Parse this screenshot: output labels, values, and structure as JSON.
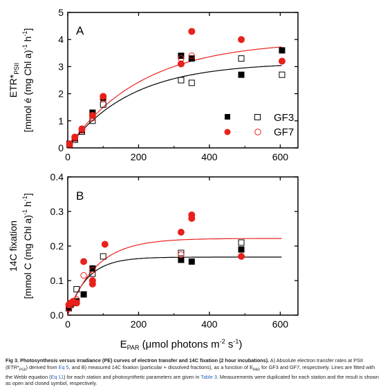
{
  "figure": {
    "caption_bold": "Fig 3. Photosynthesis versus irradiance (PE) curves of electron transfer and 14C fixation (2 hour incubations).",
    "caption_p1": " A) Absolute electron transfer rates at PSII (ETR*",
    "caption_p1_sub": "PSII",
    "caption_p2": ") derived from ",
    "caption_link1": "Eq 5",
    "caption_p3": ", and B) measured 14C fixation (particular + dissolved fractions), as a function of E",
    "caption_p3_sub": "PAR",
    "caption_p4": " for GF3 and GF7, respectively. Lines are fitted with the Webb equation (",
    "caption_link2": "Eq 11",
    "caption_p5": ") for each station and photosynthetic parameters are given in ",
    "caption_link3": "Table 3",
    "caption_p6": ". Measurements were duplicated for each station and the result is shown as open and closed symbol, respectively."
  },
  "colors": {
    "gf3": "#000000",
    "gf7": "#e8211c"
  },
  "chart_data": [
    {
      "type": "scatter",
      "panel_label": "A",
      "ylabel_line1": "ETR*",
      "ylabel_line1_sub": "PSII",
      "ylabel_line2": "[mmol é (mg Chl a)",
      "ylabel_line2_sup": "-1",
      "ylabel_line2_end": " h",
      "ylabel_line2_sup2": "-1",
      "ylabel_line2_close": "]",
      "xlim": [
        0,
        650
      ],
      "ylim": [
        0,
        5
      ],
      "xticks": [
        0,
        200,
        400,
        600
      ],
      "yticks": [
        0,
        1,
        2,
        3,
        4,
        5
      ],
      "legend": [
        "GF3",
        "GF7"
      ],
      "legend_position": "bottom-right",
      "series": [
        {
          "name": "GF3",
          "marker": "square",
          "filled": true,
          "color": "#000000",
          "x": [
            5,
            20,
            40,
            70,
            100,
            320,
            350,
            490,
            605
          ],
          "y": [
            0.15,
            0.35,
            0.65,
            1.3,
            1.85,
            3.4,
            3.3,
            2.7,
            3.6
          ]
        },
        {
          "name": "GF3",
          "marker": "square",
          "filled": false,
          "color": "#000000",
          "x": [
            5,
            20,
            40,
            70,
            100,
            320,
            350,
            490,
            605
          ],
          "y": [
            0.12,
            0.3,
            0.6,
            1.0,
            1.6,
            2.5,
            2.4,
            3.3,
            2.7
          ]
        },
        {
          "name": "GF7",
          "marker": "circle",
          "filled": true,
          "color": "#e8211c",
          "x": [
            5,
            20,
            40,
            70,
            100,
            320,
            350,
            490,
            605
          ],
          "y": [
            0.15,
            0.4,
            0.7,
            1.2,
            1.9,
            3.1,
            4.3,
            4.0,
            3.2
          ]
        },
        {
          "name": "GF7",
          "marker": "circle",
          "filled": false,
          "color": "#e8211c",
          "x": [
            5,
            20,
            40,
            70,
            100,
            320,
            350
          ],
          "y": [
            0.1,
            0.35,
            0.65,
            1.1,
            1.8,
            3.3,
            3.4
          ]
        }
      ],
      "fits": [
        {
          "color": "#000000",
          "pmax": 3.15,
          "ek": 180,
          "x_range": [
            0,
            605
          ]
        },
        {
          "color": "#e8211c",
          "pmax": 3.95,
          "ek": 210,
          "x_range": [
            0,
            605
          ]
        }
      ]
    },
    {
      "type": "scatter",
      "panel_label": "B",
      "ylabel_line1": "14C fixation",
      "ylabel_line2": "[mmol C (mg Chl a)",
      "ylabel_line2_sup": "-1",
      "ylabel_line2_end": " h",
      "ylabel_line2_sup2": "-1",
      "ylabel_line2_close": "]",
      "xlabel": "E",
      "xlabel_sub": "PAR",
      "xlabel_rest": " (μmol photons m",
      "xlabel_sup": "-2",
      "xlabel_rest2": " s",
      "xlabel_sup2": "-1",
      "xlabel_close": ")",
      "xlim": [
        0,
        650
      ],
      "ylim": [
        0,
        0.4
      ],
      "xticks": [
        0,
        200,
        400,
        600
      ],
      "yticks": [
        0.0,
        0.1,
        0.2,
        0.3,
        0.4
      ],
      "series": [
        {
          "name": "GF3",
          "marker": "square",
          "filled": true,
          "color": "#000000",
          "x": [
            3,
            8,
            15,
            25,
            45,
            70,
            320,
            350,
            490
          ],
          "y": [
            0.02,
            0.03,
            0.035,
            0.04,
            0.06,
            0.135,
            0.16,
            0.155,
            0.19
          ]
        },
        {
          "name": "GF3",
          "marker": "square",
          "filled": false,
          "color": "#000000",
          "x": [
            3,
            8,
            25,
            70,
            100,
            320,
            490
          ],
          "y": [
            0.02,
            0.03,
            0.075,
            0.12,
            0.17,
            0.18,
            0.21
          ]
        },
        {
          "name": "GF7",
          "marker": "circle",
          "filled": true,
          "color": "#e8211c",
          "x": [
            3,
            8,
            15,
            25,
            45,
            70,
            70,
            105,
            320,
            350,
            350,
            490
          ],
          "y": [
            0.03,
            0.035,
            0.04,
            0.035,
            0.155,
            0.09,
            0.1,
            0.205,
            0.24,
            0.28,
            0.29,
            0.17
          ]
        },
        {
          "name": "GF7",
          "marker": "circle",
          "filled": false,
          "color": "#e8211c",
          "x": [
            3,
            8,
            25,
            45,
            70,
            320
          ],
          "y": [
            0.02,
            0.03,
            0.045,
            0.115,
            0.13,
            0.175
          ]
        }
      ],
      "fits": [
        {
          "color": "#000000",
          "pmax": 0.168,
          "ek": 55,
          "x_range": [
            0,
            605
          ]
        },
        {
          "color": "#e8211c",
          "pmax": 0.222,
          "ek": 80,
          "x_range": [
            0,
            605
          ]
        }
      ]
    }
  ]
}
